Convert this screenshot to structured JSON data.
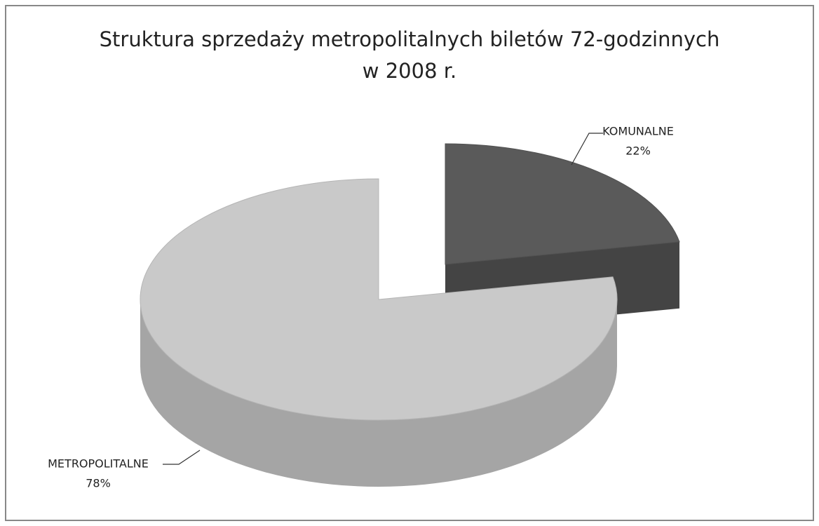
{
  "chart_data": {
    "type": "pie",
    "title": [
      "Struktura sprzedaży metropolitalnych biletów 72-godzinnych",
      "w 2008 r."
    ],
    "categories": [
      "KOMUNALNE",
      "METROPOLITALNE"
    ],
    "values": [
      22,
      78
    ],
    "value_labels": [
      "22%",
      "78%"
    ],
    "colors": [
      "#5a5a5a",
      "#c9c9c9"
    ]
  }
}
